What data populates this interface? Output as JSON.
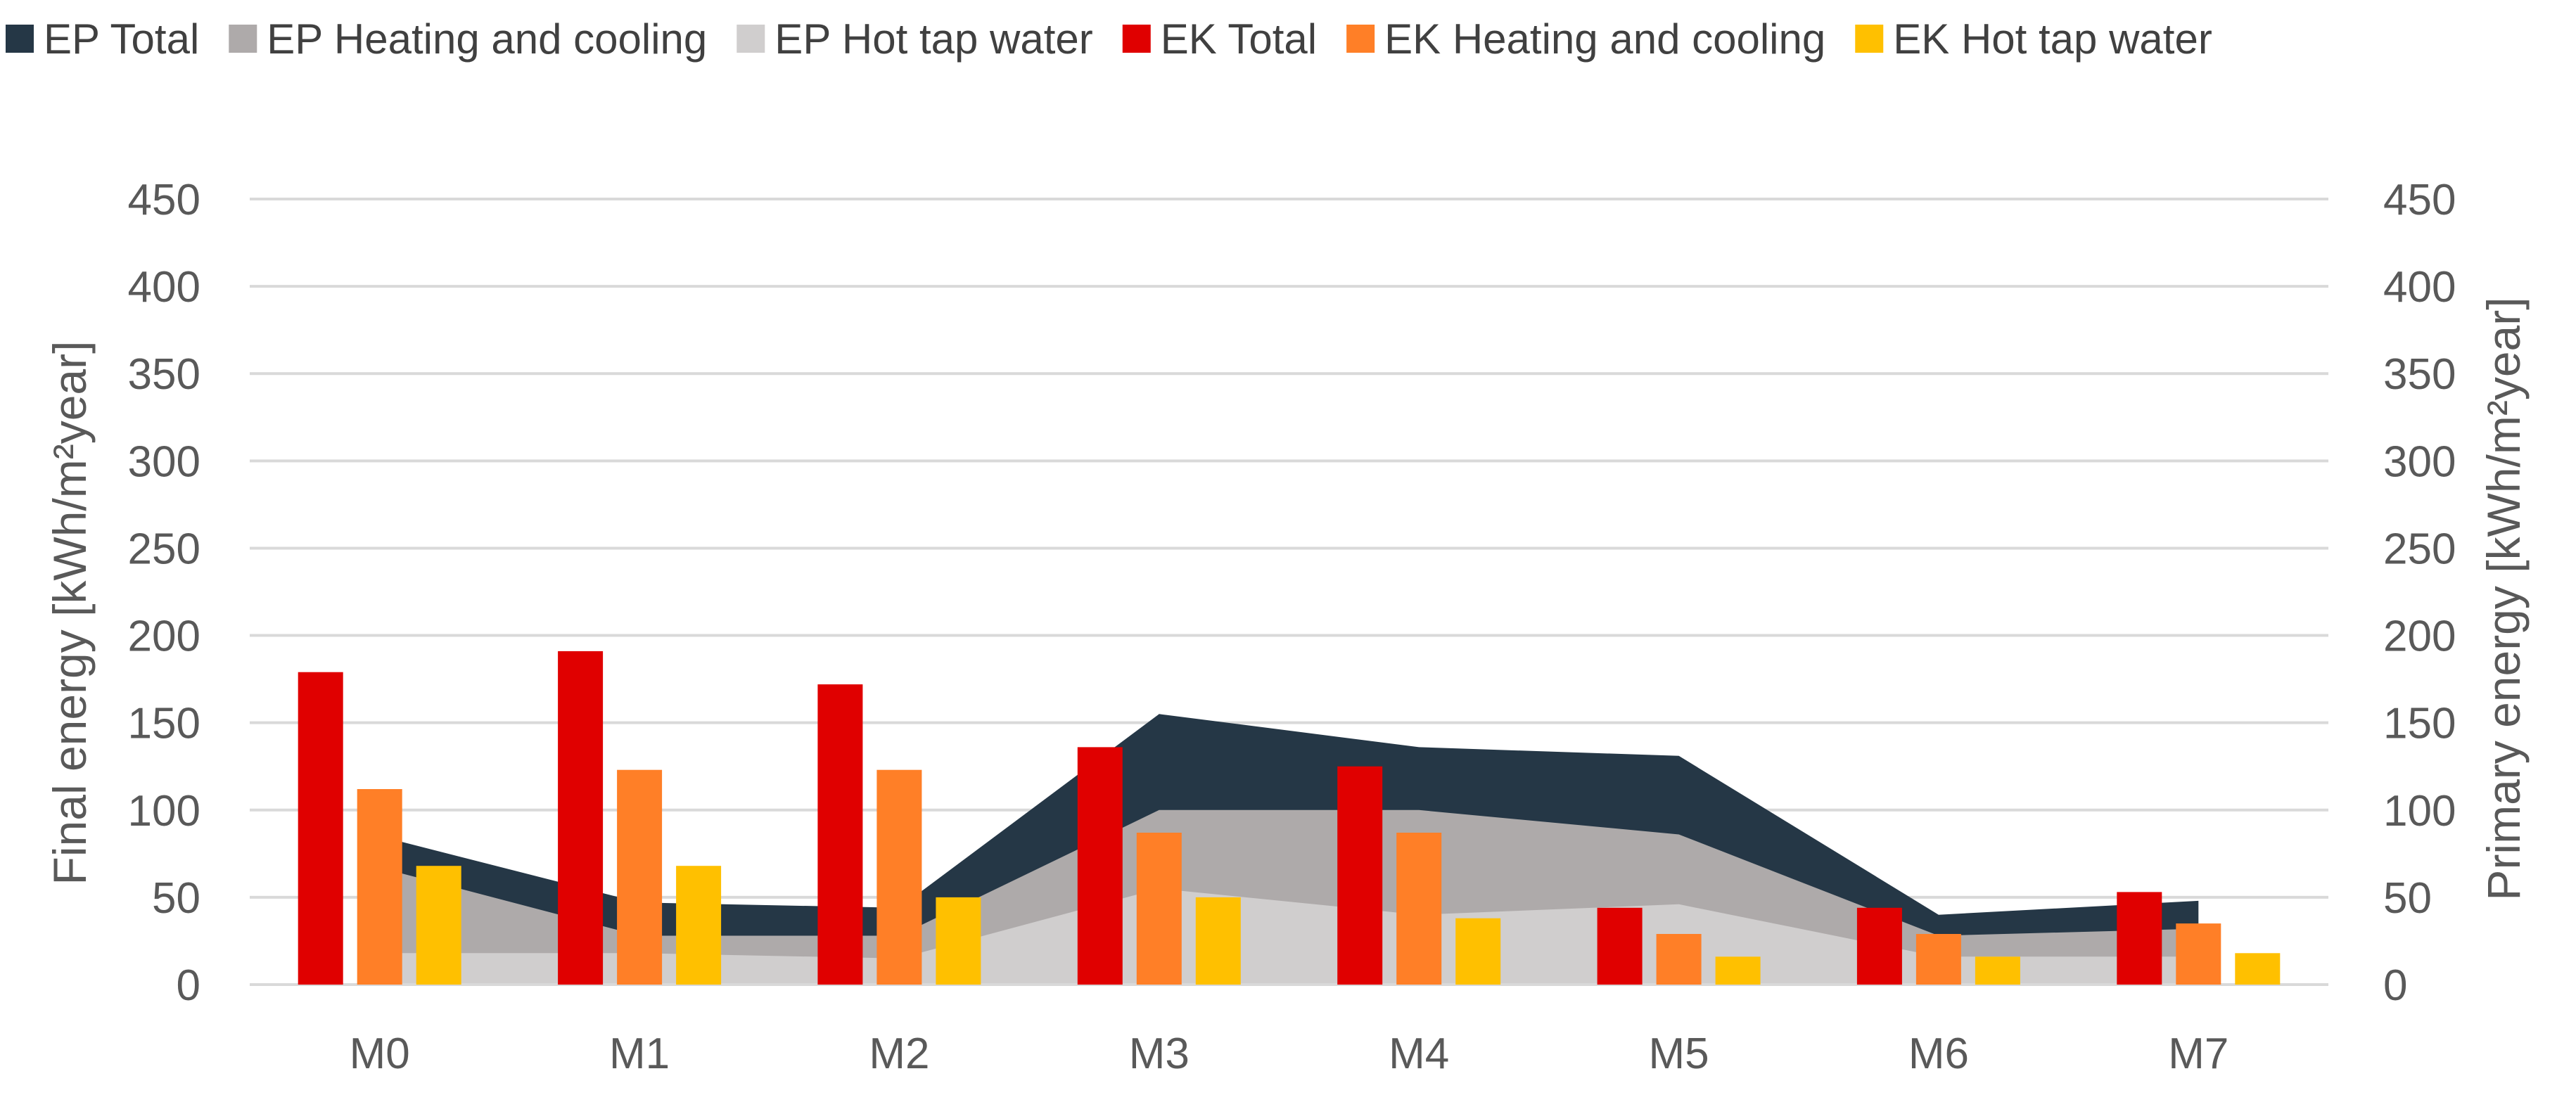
{
  "chart_data": {
    "type": "bar+area",
    "categories": [
      "M0",
      "M1",
      "M2",
      "M3",
      "M4",
      "M5",
      "M6",
      "M7"
    ],
    "left_axis": {
      "label": "Final energy [kWh/m²year]",
      "ylim": [
        0,
        450
      ],
      "ticks": [
        0,
        50,
        100,
        150,
        200,
        250,
        300,
        350,
        400,
        450
      ]
    },
    "right_axis": {
      "label": "Primary energy [kWh/m²year]",
      "ylim": [
        0,
        450
      ],
      "ticks": [
        0,
        50,
        100,
        150,
        200,
        250,
        300,
        350,
        400,
        450
      ]
    },
    "grid": true,
    "legend_position": "top",
    "series": [
      {
        "name": "EP Total",
        "kind": "area",
        "axis": "right",
        "color": "#253746",
        "values": [
          85,
          47,
          44,
          155,
          136,
          131,
          40,
          48
        ]
      },
      {
        "name": "EP Heating and cooling",
        "kind": "area",
        "axis": "right",
        "color": "#aeaaaa",
        "values": [
          67,
          28,
          28,
          100,
          100,
          86,
          28,
          32
        ]
      },
      {
        "name": "EP Hot tap water",
        "kind": "area",
        "axis": "right",
        "color": "#d0cece",
        "values": [
          18,
          18,
          15,
          55,
          40,
          46,
          16,
          16
        ]
      },
      {
        "name": "EK Total",
        "kind": "bar",
        "axis": "left",
        "color": "#e00000",
        "values": [
          179,
          191,
          172,
          136,
          125,
          44,
          44,
          53
        ]
      },
      {
        "name": "EK Heating and cooling",
        "kind": "bar",
        "axis": "left",
        "color": "#ff7f27",
        "values": [
          112,
          123,
          123,
          87,
          87,
          29,
          29,
          35
        ]
      },
      {
        "name": "EK Hot tap water",
        "kind": "bar",
        "axis": "left",
        "color": "#ffc000",
        "values": [
          68,
          68,
          50,
          50,
          38,
          16,
          16,
          18
        ]
      }
    ]
  }
}
